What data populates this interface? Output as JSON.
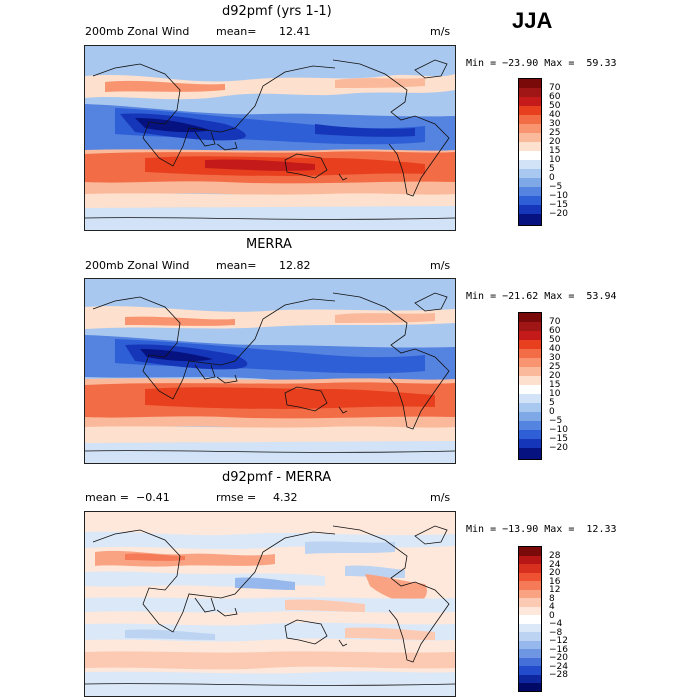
{
  "season": "JJA",
  "panels": [
    {
      "title": "d92pmf (yrs 1-1)",
      "variable": "200mb Zonal Wind",
      "left_stat": "mean=",
      "left_value": "12.41",
      "right_stat": "",
      "right_value": "",
      "units": "m/s",
      "minmax": "Min = −23.90 Max =  59.33",
      "colorbar_labels": [
        "70",
        "60",
        "50",
        "40",
        "30",
        "25",
        "20",
        "15",
        "10",
        "5",
        "0",
        "−5",
        "−10",
        "−15",
        "−20"
      ]
    },
    {
      "title": "MERRA",
      "variable": "200mb Zonal Wind",
      "left_stat": "mean=",
      "left_value": "12.82",
      "right_stat": "",
      "right_value": "",
      "units": "m/s",
      "minmax": "Min = −21.62 Max =  53.94",
      "colorbar_labels": [
        "70",
        "60",
        "50",
        "40",
        "30",
        "25",
        "20",
        "15",
        "10",
        "5",
        "0",
        "−5",
        "−10",
        "−15",
        "−20"
      ]
    },
    {
      "title": "d92pmf - MERRA",
      "variable": "",
      "left_stat": "mean =",
      "left_value": "−0.41",
      "right_stat": "rmse =",
      "right_value": "4.32",
      "units": "m/s",
      "minmax": "Min = −13.90 Max =  12.33",
      "colorbar_labels": [
        "28",
        "24",
        "20",
        "16",
        "12",
        "8",
        "4",
        "0",
        "−4",
        "−8",
        "−12",
        "−16",
        "−20",
        "−24",
        "−28"
      ]
    }
  ],
  "colors": {
    "full_field_scale": [
      "#7a0a0a",
      "#c41a1a",
      "#e8401f",
      "#f26c45",
      "#f8946f",
      "#fbb99b",
      "#fde0cd",
      "#ffffff",
      "#d2e3f7",
      "#a9c8ef",
      "#7fa9e6",
      "#5583e0",
      "#2f5fd6",
      "#1536b8",
      "#06127f",
      "#000060"
    ],
    "difference_scale": [
      "#7a0a0a",
      "#b71616",
      "#d8301e",
      "#ef5233",
      "#f57a57",
      "#f9a383",
      "#fccab3",
      "#fde8db",
      "#ffffff",
      "#dbe8f8",
      "#bcd3f2",
      "#97b8ec",
      "#6f96e2",
      "#4670d9",
      "#234ccd",
      "#0e279e",
      "#000a66"
    ],
    "coastline": "#111111"
  }
}
